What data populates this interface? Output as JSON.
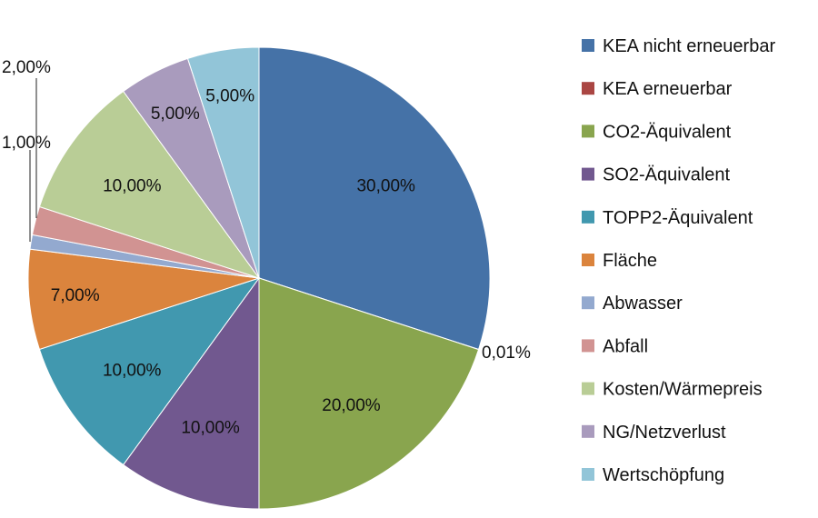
{
  "chart_data": {
    "type": "pie",
    "title": "",
    "legend_position": "right",
    "slices": [
      {
        "name": "KEA nicht erneuerbar",
        "value": 30.0,
        "label": "30,00%",
        "color": "#4572A7"
      },
      {
        "name": "KEA erneuerbar",
        "value": 0.01,
        "label": "0,01%",
        "color": "#AA4643"
      },
      {
        "name": "CO2-Äquivalent",
        "value": 20.0,
        "label": "20,00%",
        "color": "#89A54E"
      },
      {
        "name": "SO2-Äquivalent",
        "value": 10.0,
        "label": "10,00%",
        "color": "#71588F"
      },
      {
        "name": "TOPP2-Äquivalent",
        "value": 10.0,
        "label": "10,00%",
        "color": "#4198AF"
      },
      {
        "name": "Fläche",
        "value": 7.0,
        "label": "7,00%",
        "color": "#DB843D"
      },
      {
        "name": "Abwasser",
        "value": 1.0,
        "label": "1,00%",
        "color": "#93A9CF"
      },
      {
        "name": "Abfall",
        "value": 2.0,
        "label": "2,00%",
        "color": "#D19392"
      },
      {
        "name": "Kosten/Wärmepreis",
        "value": 10.0,
        "label": "10,00%",
        "color": "#B9CD96"
      },
      {
        "name": "NG/Netzverlust",
        "value": 5.0,
        "label": "5,00%",
        "color": "#A99BBD"
      },
      {
        "name": "Wertschöpfung",
        "value": 5.0,
        "label": "5,00%",
        "color": "#92C5D8"
      }
    ]
  }
}
